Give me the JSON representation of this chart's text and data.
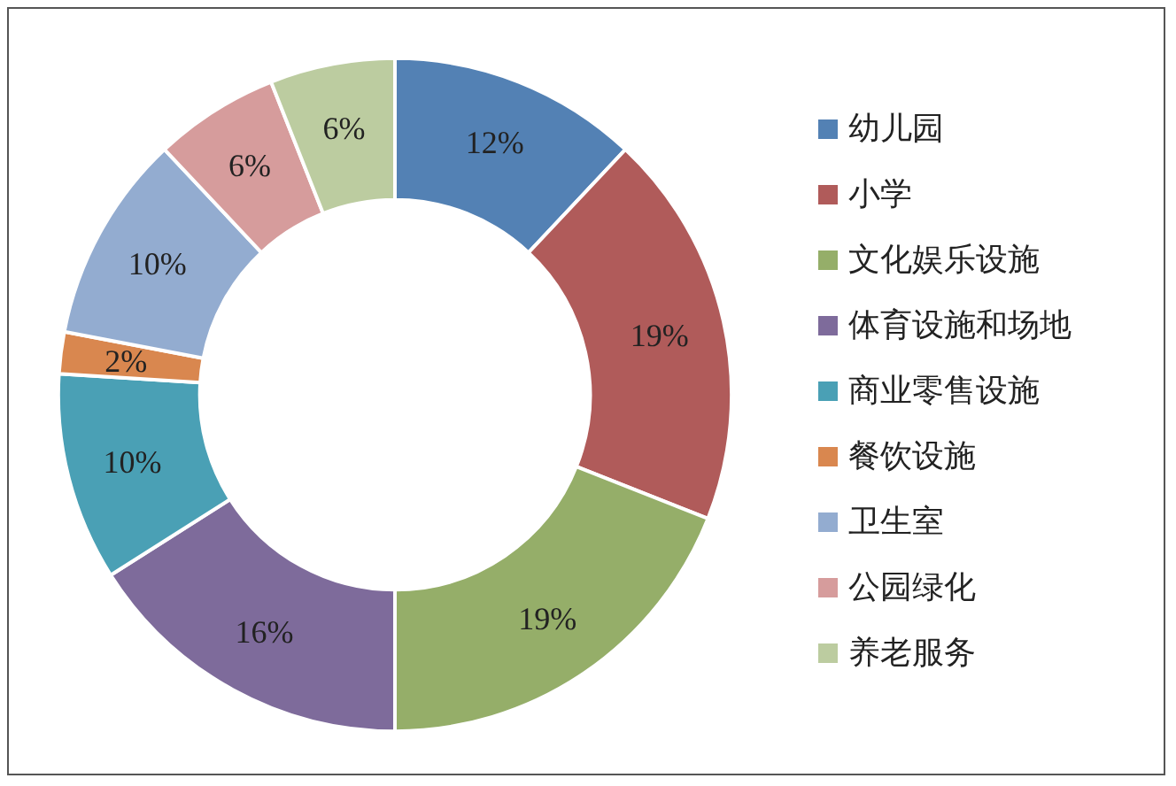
{
  "chart_data": {
    "type": "donut",
    "categories": [
      "幼儿园",
      "小学",
      "文化娱乐设施",
      "体育设施和场地",
      "商业零售设施",
      "餐饮设施",
      "卫生室",
      "公园绿化",
      "养老服务"
    ],
    "values": [
      12,
      19,
      19,
      16,
      10,
      2,
      10,
      6,
      6
    ],
    "value_labels": [
      "12%",
      "19%",
      "19%",
      "16%",
      "10%",
      "2%",
      "10%",
      "6%",
      "6%"
    ],
    "colors": [
      "#5381b4",
      "#b05b5a",
      "#95ae69",
      "#7e6b9b",
      "#4aa0b5",
      "#d9874f",
      "#93acd0",
      "#d69c9c",
      "#bccca0"
    ],
    "legend": "right"
  }
}
